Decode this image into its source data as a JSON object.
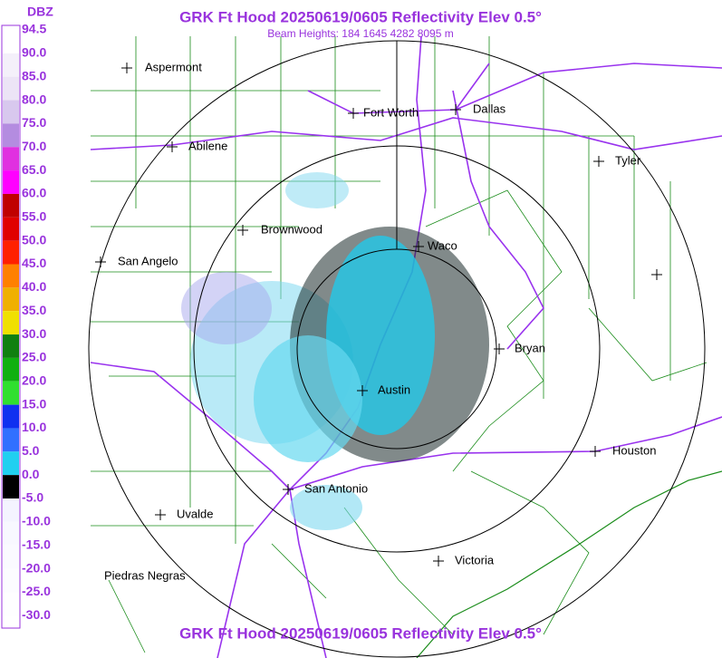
{
  "header": {
    "title": "GRK Ft Hood 20250619/0605 Reflectivity Elev 0.5°",
    "subtitle": "Beam Heights: 184 1645 4282 8095 m"
  },
  "footer": {
    "title": "GRK Ft Hood 20250619/0605 Reflectivity Elev 0.5°"
  },
  "legend": {
    "unit": "DBZ",
    "labels": [
      "94.5",
      "90.0",
      "85.0",
      "80.0",
      "75.0",
      "70.0",
      "65.0",
      "60.0",
      "55.0",
      "50.0",
      "45.0",
      "40.0",
      "35.0",
      "30.0",
      "25.0",
      "20.0",
      "15.0",
      "10.0",
      "5.0",
      "0.0",
      "-5.0",
      "-10.0",
      "-15.0",
      "-20.0",
      "-25.0",
      "-30.0"
    ]
  },
  "cities": [
    "Aspermont",
    "Fort Worth",
    "Dallas",
    "Abilene",
    "Tyler",
    "Brownwood",
    "Waco",
    "San Angelo",
    "Bryan",
    "Austin",
    "Houston",
    "San Antonio",
    "Uvalde",
    "Victoria",
    "Piedras Negras"
  ]
}
